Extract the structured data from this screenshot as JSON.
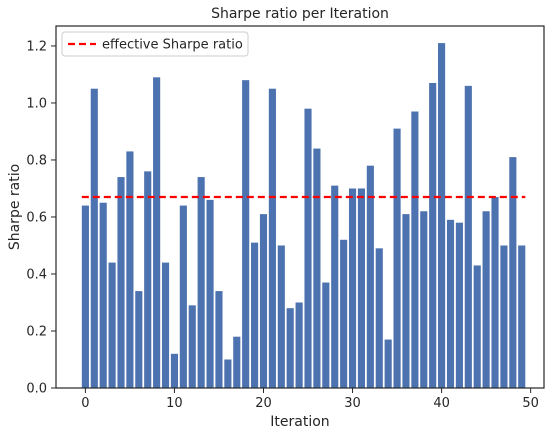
{
  "chart_data": {
    "type": "bar",
    "title": "Sharpe ratio per Iteration",
    "xlabel": "Iteration",
    "ylabel": "Sharpe ratio",
    "x": [
      0,
      1,
      2,
      3,
      4,
      5,
      6,
      7,
      8,
      9,
      10,
      11,
      12,
      13,
      14,
      15,
      16,
      17,
      18,
      19,
      20,
      21,
      22,
      23,
      24,
      25,
      26,
      27,
      28,
      29,
      30,
      31,
      32,
      33,
      34,
      35,
      36,
      37,
      38,
      39,
      40,
      41,
      42,
      43,
      44,
      45,
      46,
      47,
      48,
      49
    ],
    "values": [
      0.64,
      1.05,
      0.65,
      0.44,
      0.74,
      0.83,
      0.34,
      0.76,
      1.09,
      0.44,
      0.12,
      0.64,
      0.29,
      0.74,
      0.66,
      0.34,
      0.1,
      0.18,
      1.08,
      0.51,
      0.61,
      1.05,
      0.5,
      0.28,
      0.3,
      0.98,
      0.84,
      0.37,
      0.71,
      0.52,
      0.7,
      0.7,
      0.78,
      0.49,
      0.17,
      0.91,
      0.61,
      0.97,
      0.62,
      1.07,
      1.21,
      0.59,
      0.58,
      1.06,
      0.43,
      0.62,
      0.67,
      0.5,
      0.81,
      0.5
    ],
    "reference_line": {
      "name": "effective Sharpe ratio",
      "value": 0.67,
      "color": "#ff0000",
      "style": "dashed"
    },
    "bar_color": "#4c72b0",
    "xlim": [
      -3.3,
      51.5
    ],
    "ylim": [
      0,
      1.27
    ],
    "xticks": [
      0,
      10,
      20,
      30,
      40,
      50
    ],
    "yticks": [
      0.0,
      0.2,
      0.4,
      0.6,
      0.8,
      1.0,
      1.2
    ],
    "xtick_labels": [
      "0",
      "10",
      "20",
      "30",
      "40",
      "50"
    ],
    "ytick_labels": [
      "0.0",
      "0.2",
      "0.4",
      "0.6",
      "0.8",
      "1.0",
      "1.2"
    ],
    "legend_placement": "top-left",
    "grid": false
  }
}
